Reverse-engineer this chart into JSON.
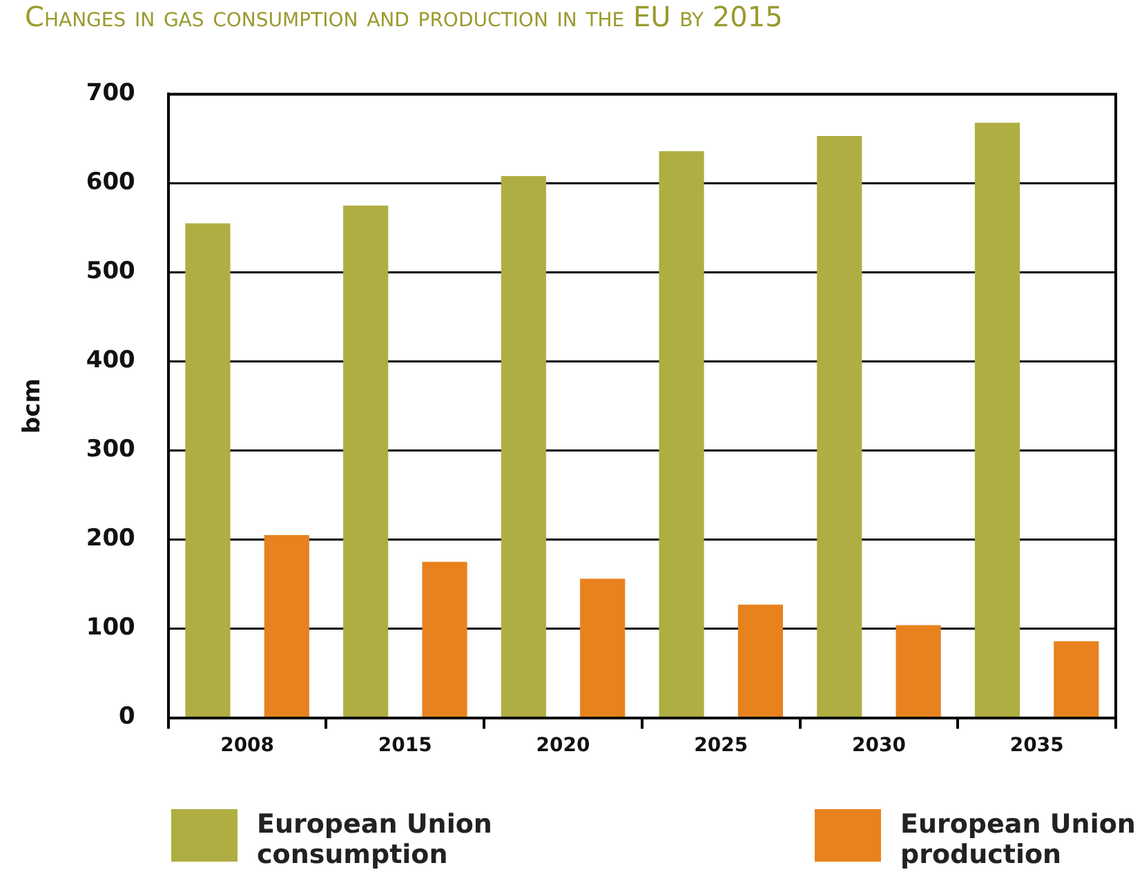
{
  "chart_data": {
    "type": "bar",
    "title": "Changes in gas consumption and production in the EU by 2015",
    "ylabel": "bcm",
    "categories": [
      "2008",
      "2015",
      "2020",
      "2025",
      "2030",
      "2035"
    ],
    "series": [
      {
        "name": "European Union consumption",
        "color": "#afae42",
        "values": [
          555,
          575,
          608,
          636,
          653,
          668
        ]
      },
      {
        "name": "European Union production",
        "color": "#e8821e",
        "values": [
          205,
          175,
          156,
          127,
          104,
          86
        ]
      }
    ],
    "ylim": [
      0,
      700
    ],
    "yticks": [
      0,
      100,
      200,
      300,
      400,
      500,
      600,
      700
    ],
    "grid": "y",
    "legend": "bottom"
  }
}
